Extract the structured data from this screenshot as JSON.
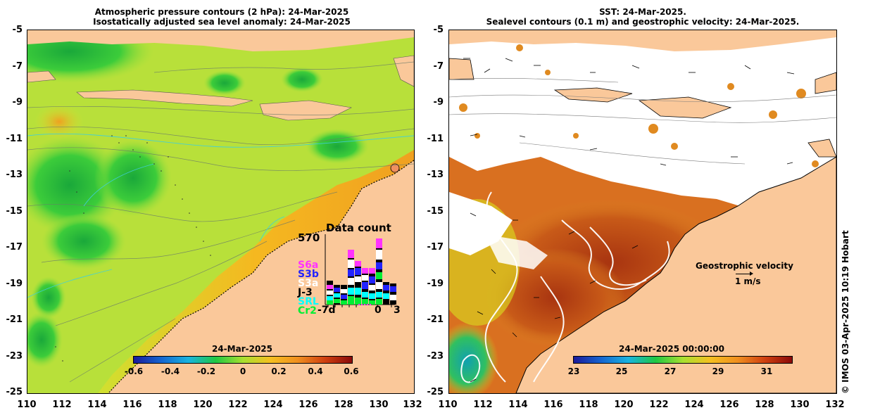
{
  "left_panel": {
    "title_line1": "Atmospheric pressure contours (2 hPa): 24-Mar-2025",
    "title_line2": "Isostatically adjusted sea level anomaly: 24-Mar-2025",
    "colorbar": {
      "date": "24-Mar-2025",
      "ticks": [
        "-0.6",
        "-0.4",
        "-0.2",
        "0",
        "0.2",
        "0.4",
        "0.6"
      ]
    },
    "inset": {
      "title": "Data count",
      "max": "570",
      "satellites": [
        {
          "name": "S6a",
          "color": "#ff33ff"
        },
        {
          "name": "S3b",
          "color": "#2222ff"
        },
        {
          "name": "S3a",
          "color": "#ffffff"
        },
        {
          "name": "J-3",
          "color": "#000000"
        },
        {
          "name": "SRL",
          "color": "#00ffff"
        },
        {
          "name": "Cr2",
          "color": "#00ee33"
        }
      ],
      "x_ticks": [
        "-7d",
        "0",
        "3"
      ]
    }
  },
  "right_panel": {
    "title_line1": "SST: 24-Mar-2025.",
    "title_line2": "Sealevel contours (0.1 m) and geostrophic velocity: 24-Mar-2025.",
    "colorbar": {
      "date": "24-Mar-2025 00:00:00",
      "ticks": [
        "23",
        "25",
        "27",
        "29",
        "31"
      ]
    },
    "velocity_legend": {
      "label": "Geostrophic velocity",
      "scale": "1 m/s"
    }
  },
  "axes": {
    "y_ticks": [
      "-5",
      "-7",
      "-9",
      "-11",
      "-13",
      "-15",
      "-17",
      "-19",
      "-21",
      "-23",
      "-25"
    ],
    "x_ticks": [
      "110",
      "112",
      "114",
      "116",
      "118",
      "120",
      "122",
      "124",
      "126",
      "128",
      "130",
      "132"
    ]
  },
  "credit": "© IMOS 03-Apr-2025 10:19 Hobart",
  "colors": {
    "land": "#fac89a",
    "sla_base": "#b8e03a",
    "sst_warm": "#c24a10",
    "no_data": "#ffffff"
  }
}
